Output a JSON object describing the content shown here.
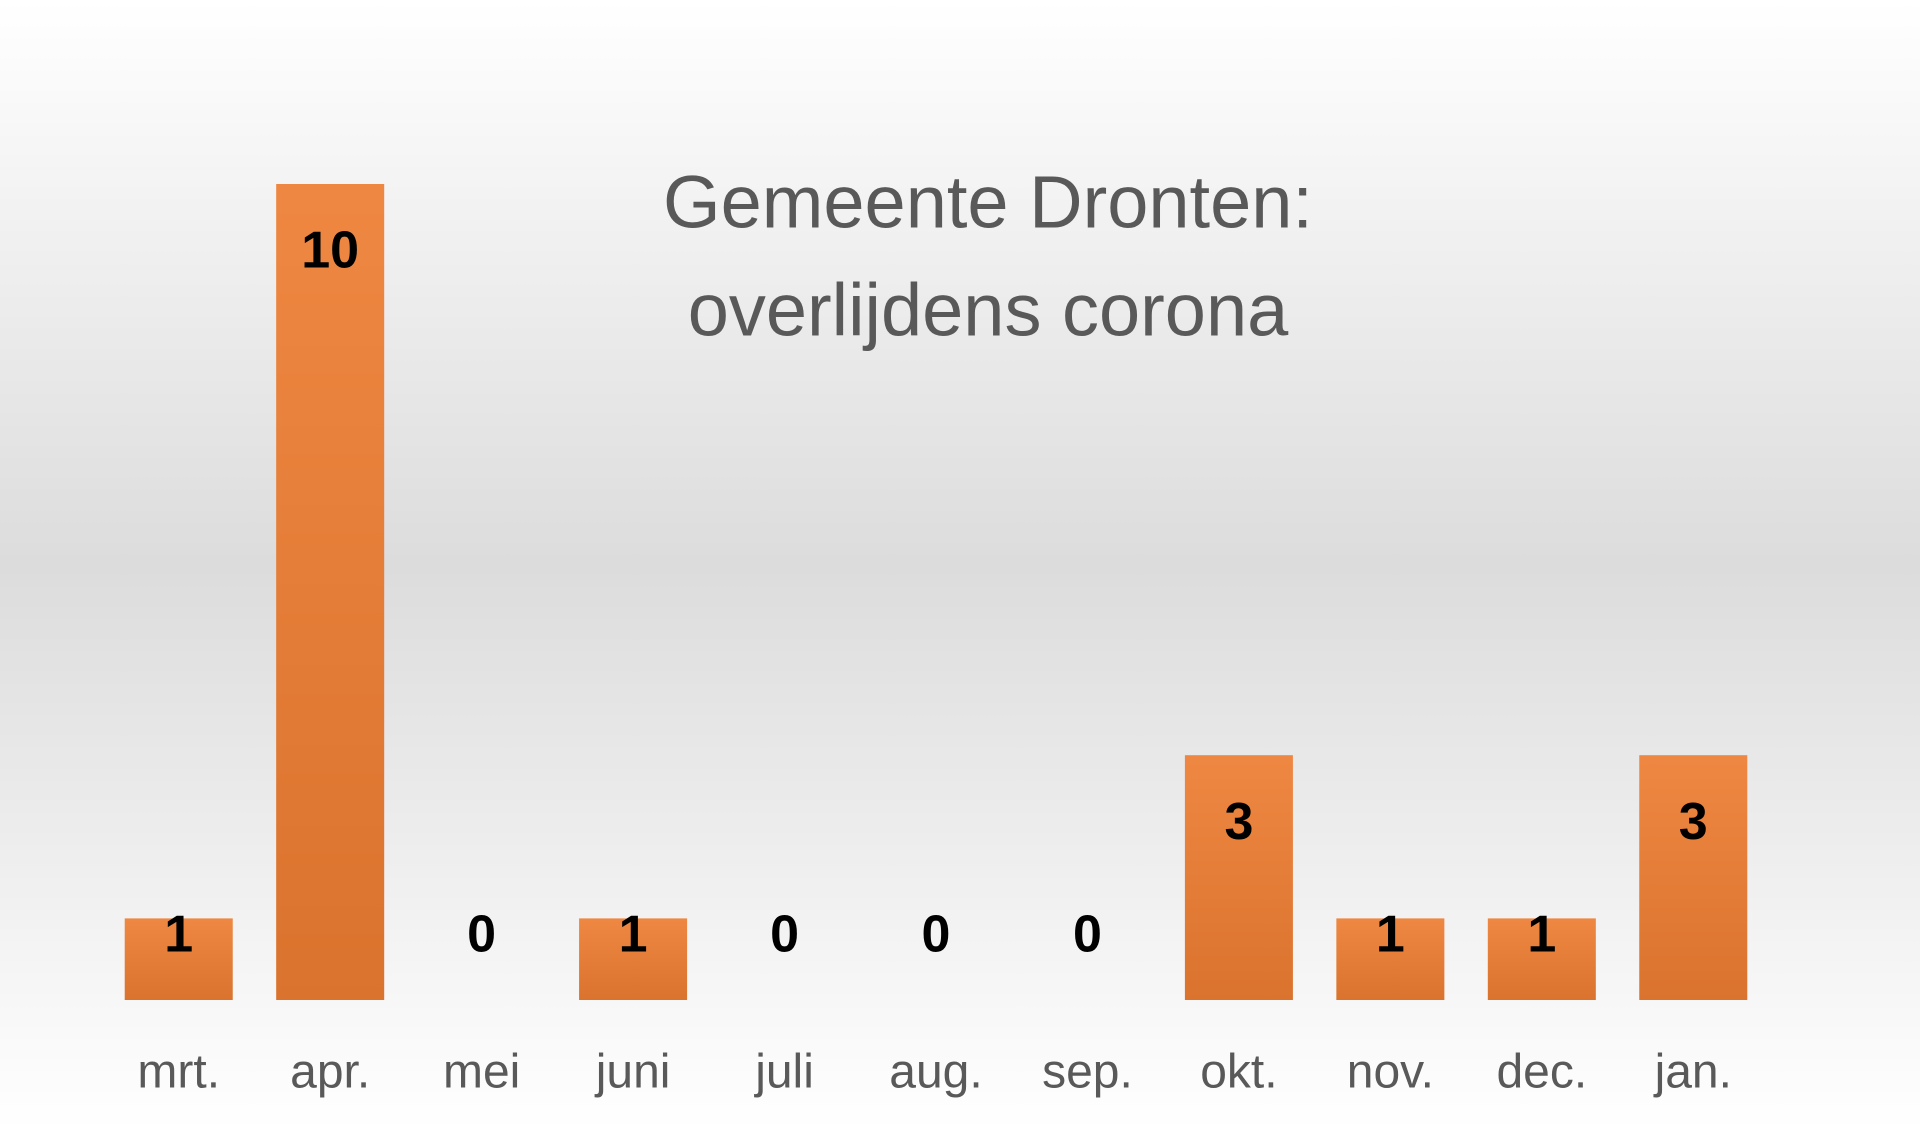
{
  "chart_data": {
    "type": "bar",
    "title": [
      "Gemeente Dronten:",
      "overlijdens corona"
    ],
    "categories": [
      "mrt.",
      "apr.",
      "mei",
      "juni",
      "juli",
      "aug.",
      "sep.",
      "okt.",
      "nov.",
      "dec.",
      "jan."
    ],
    "values": [
      1,
      10,
      0,
      1,
      0,
      0,
      0,
      3,
      1,
      1,
      3
    ],
    "color": "#ed7d31",
    "ylim": [
      0,
      10
    ]
  }
}
